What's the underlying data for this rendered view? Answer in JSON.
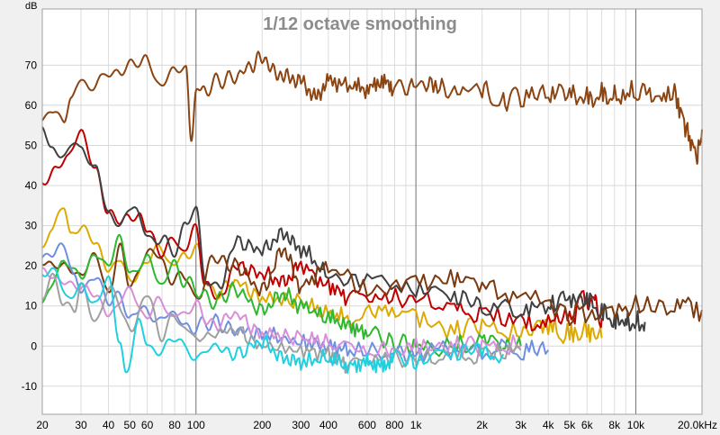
{
  "chart_data": {
    "type": "line",
    "title": "1/12 octave smoothing",
    "ylabel": "dB",
    "xscale": "log",
    "xlim": [
      20,
      20000
    ],
    "ylim": [
      -17,
      84
    ],
    "grid": true,
    "x_tick_labels": [
      "20",
      "30",
      "40",
      "50",
      "60",
      "80",
      "100",
      "200",
      "300",
      "400",
      "600",
      "800",
      "1k",
      "2k",
      "3k",
      "4k",
      "5k",
      "6k",
      "8k",
      "10k",
      "20.0kHz"
    ],
    "x_tick_values": [
      20,
      30,
      40,
      50,
      60,
      80,
      100,
      200,
      300,
      400,
      600,
      800,
      1000,
      2000,
      3000,
      4000,
      5000,
      6000,
      8000,
      10000,
      20000
    ],
    "y_tick_values": [
      70,
      60,
      50,
      40,
      30,
      20,
      10,
      0,
      -10
    ],
    "y_tick_labels": [
      "70",
      "60",
      "50",
      "40",
      "30",
      "20",
      "10",
      "0",
      "-10"
    ],
    "series": [
      {
        "color": "#8b4513",
        "x": [
          20,
          22,
          25,
          27,
          30,
          33,
          37,
          40,
          45,
          50,
          55,
          60,
          70,
          80,
          90,
          95,
          100,
          105,
          110,
          125,
          150,
          180,
          200,
          230,
          260,
          300,
          350,
          400,
          500,
          600,
          700,
          800,
          1000,
          1200,
          1500,
          2000,
          2500,
          3000,
          4000,
          5000,
          6000,
          7000,
          8000,
          10000,
          12000,
          15000,
          17000,
          19000,
          20000
        ],
        "y": [
          55,
          58,
          56,
          62,
          68,
          64,
          66,
          67,
          69,
          71,
          69,
          72,
          64,
          70,
          68,
          52,
          65,
          62,
          64,
          66,
          67,
          70,
          72,
          68,
          67,
          66,
          62,
          66,
          65,
          64,
          66,
          64,
          65,
          65,
          63,
          64,
          61,
          62,
          63,
          63,
          62,
          63,
          63,
          64,
          63,
          63,
          53,
          47,
          54
        ]
      },
      {
        "color": "#dcaa00",
        "x": [
          20,
          22,
          25,
          27,
          30,
          35,
          40,
          45,
          50,
          60,
          70,
          80,
          90,
          100,
          120,
          150,
          200,
          300,
          400,
          500,
          700,
          1000,
          1500,
          2000,
          3000,
          4000,
          5000,
          6000,
          7000
        ],
        "y": [
          24,
          30,
          36,
          28,
          29,
          25,
          20,
          22,
          15,
          22,
          24,
          20,
          23,
          24,
          13,
          16,
          12,
          11,
          8,
          7,
          9,
          7,
          4,
          5,
          3,
          5,
          3,
          4,
          2
        ]
      },
      {
        "color": "#c00000",
        "x": [
          20,
          23,
          26,
          30,
          35,
          40,
          45,
          50,
          55,
          60,
          70,
          80,
          90,
          100,
          110,
          130,
          150,
          200,
          250,
          300,
          400,
          500,
          700,
          1000,
          1500,
          2000,
          3000,
          4000,
          5000,
          6000,
          6500,
          7000
        ],
        "y": [
          41,
          44,
          46,
          53,
          45,
          33,
          30,
          33,
          33,
          28,
          24,
          26,
          24,
          30,
          15,
          12,
          20,
          18,
          16,
          20,
          15,
          12,
          12,
          12,
          10,
          8,
          6,
          6,
          7,
          12,
          10,
          7
        ]
      },
      {
        "color": "#404040",
        "x": [
          20,
          22,
          25,
          28,
          30,
          35,
          40,
          45,
          50,
          60,
          70,
          80,
          90,
          100,
          110,
          130,
          150,
          200,
          250,
          300,
          400,
          600,
          1000,
          1500,
          2000,
          3000,
          4000,
          5000,
          6000,
          7000,
          8000,
          9000,
          10000,
          11000
        ],
        "y": [
          54,
          48,
          47,
          52,
          50,
          44,
          32,
          31,
          35,
          28,
          26,
          24,
          30,
          35,
          16,
          15,
          26,
          24,
          28,
          24,
          18,
          16,
          14,
          12,
          10,
          9,
          10,
          12,
          12,
          9,
          7,
          7,
          6,
          6
        ]
      },
      {
        "color": "#7a3a10",
        "x": [
          20,
          25,
          30,
          35,
          40,
          45,
          50,
          60,
          70,
          80,
          90,
          100,
          120,
          150,
          200,
          250,
          300,
          400,
          600,
          1000,
          1500,
          2000,
          3000,
          5000,
          7000,
          10000,
          15000,
          20000
        ],
        "y": [
          21,
          21,
          17,
          22,
          14,
          25,
          14,
          24,
          21,
          16,
          18,
          11,
          22,
          20,
          14,
          24,
          15,
          20,
          14,
          16,
          17,
          15,
          12,
          8,
          9,
          10,
          10,
          9
        ]
      },
      {
        "color": "#2eb82e",
        "x": [
          20,
          25,
          30,
          35,
          40,
          45,
          50,
          60,
          70,
          80,
          90,
          100,
          120,
          150,
          200,
          250,
          300,
          400,
          500,
          600,
          800,
          1000,
          1500,
          2000,
          2500,
          3000
        ],
        "y": [
          12,
          20,
          17,
          24,
          20,
          26,
          19,
          21,
          16,
          20,
          16,
          14,
          11,
          14,
          9,
          13,
          10,
          7,
          5,
          3,
          1,
          0,
          0,
          2,
          0,
          0
        ]
      },
      {
        "color": "#6f8fe0",
        "x": [
          20,
          22,
          25,
          28,
          30,
          35,
          40,
          45,
          50,
          60,
          70,
          80,
          90,
          100,
          120,
          150,
          200,
          300,
          400,
          500,
          800,
          1000,
          1500,
          2000,
          3000,
          4000
        ],
        "y": [
          21,
          22,
          25,
          18,
          15,
          17,
          10,
          14,
          7,
          9,
          6,
          9,
          4,
          5,
          6,
          4,
          3,
          1,
          0,
          -1,
          -2,
          -2,
          -1,
          -1,
          -1,
          -1
        ]
      },
      {
        "color": "#d98ed9",
        "x": [
          20,
          25,
          30,
          35,
          40,
          50,
          60,
          70,
          80,
          100,
          120,
          150,
          200,
          300,
          400,
          600,
          800,
          1000,
          1500,
          2000,
          3000
        ],
        "y": [
          19,
          17,
          14,
          12,
          9,
          13,
          8,
          11,
          7,
          10,
          5,
          8,
          3,
          2,
          1,
          -1,
          -1,
          0,
          0,
          0,
          0
        ]
      },
      {
        "color": "#a0a0a0",
        "x": [
          20,
          22,
          25,
          28,
          30,
          35,
          40,
          50,
          60,
          70,
          80,
          100,
          150,
          200,
          300,
          400,
          500,
          700,
          1000,
          1500,
          2000,
          3000
        ],
        "y": [
          12,
          18,
          10,
          8,
          15,
          7,
          14,
          5,
          12,
          3,
          7,
          2,
          4,
          0,
          -1,
          -2,
          -5,
          -3,
          -3,
          -2,
          -2,
          -1
        ]
      },
      {
        "color": "#20d0e0",
        "x": [
          20,
          23,
          26,
          30,
          35,
          40,
          45,
          48,
          55,
          60,
          70,
          80,
          90,
          100,
          120,
          150,
          200,
          250,
          300,
          400,
          500,
          600,
          700,
          800,
          1000,
          1500,
          2000,
          2500
        ],
        "y": [
          17,
          18,
          12,
          16,
          10,
          16,
          2,
          -6,
          5,
          1,
          -2,
          3,
          -1,
          -3,
          0,
          -2,
          1,
          -3,
          -4,
          -3,
          -5,
          -4,
          -5,
          -3,
          -4,
          -2,
          -1,
          -2
        ]
      }
    ]
  }
}
